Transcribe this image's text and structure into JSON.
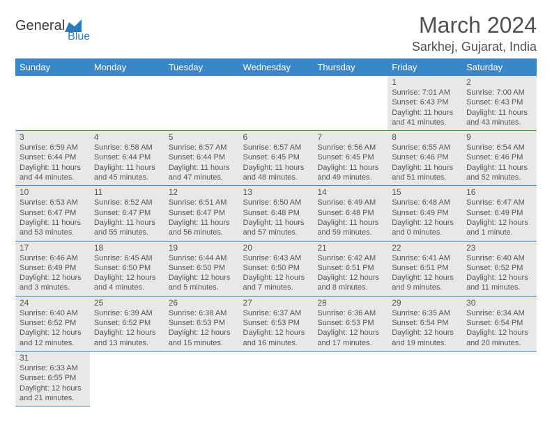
{
  "logo": {
    "text1": "General",
    "text2": "Blue"
  },
  "title": "March 2024",
  "location": "Sarkhej, Gujarat, India",
  "colors": {
    "header_bg": "#3a87c8",
    "header_text": "#ffffff",
    "cell_bg": "#e8e8e8",
    "border": "#3a87c8",
    "text": "#555555",
    "title_text": "#505050",
    "logo_gray": "#3a3a3a",
    "logo_blue": "#2b7bbf"
  },
  "typography": {
    "title_fontsize": 32,
    "location_fontsize": 18,
    "header_fontsize": 13,
    "daynum_fontsize": 12,
    "body_fontsize": 11
  },
  "day_headers": [
    "Sunday",
    "Monday",
    "Tuesday",
    "Wednesday",
    "Thursday",
    "Friday",
    "Saturday"
  ],
  "weeks": [
    [
      null,
      null,
      null,
      null,
      null,
      {
        "n": "1",
        "sr": "Sunrise: 7:01 AM",
        "ss": "Sunset: 6:43 PM",
        "d1": "Daylight: 11 hours",
        "d2": "and 41 minutes."
      },
      {
        "n": "2",
        "sr": "Sunrise: 7:00 AM",
        "ss": "Sunset: 6:43 PM",
        "d1": "Daylight: 11 hours",
        "d2": "and 43 minutes."
      }
    ],
    [
      {
        "n": "3",
        "sr": "Sunrise: 6:59 AM",
        "ss": "Sunset: 6:44 PM",
        "d1": "Daylight: 11 hours",
        "d2": "and 44 minutes."
      },
      {
        "n": "4",
        "sr": "Sunrise: 6:58 AM",
        "ss": "Sunset: 6:44 PM",
        "d1": "Daylight: 11 hours",
        "d2": "and 45 minutes."
      },
      {
        "n": "5",
        "sr": "Sunrise: 6:57 AM",
        "ss": "Sunset: 6:44 PM",
        "d1": "Daylight: 11 hours",
        "d2": "and 47 minutes."
      },
      {
        "n": "6",
        "sr": "Sunrise: 6:57 AM",
        "ss": "Sunset: 6:45 PM",
        "d1": "Daylight: 11 hours",
        "d2": "and 48 minutes."
      },
      {
        "n": "7",
        "sr": "Sunrise: 6:56 AM",
        "ss": "Sunset: 6:45 PM",
        "d1": "Daylight: 11 hours",
        "d2": "and 49 minutes."
      },
      {
        "n": "8",
        "sr": "Sunrise: 6:55 AM",
        "ss": "Sunset: 6:46 PM",
        "d1": "Daylight: 11 hours",
        "d2": "and 51 minutes."
      },
      {
        "n": "9",
        "sr": "Sunrise: 6:54 AM",
        "ss": "Sunset: 6:46 PM",
        "d1": "Daylight: 11 hours",
        "d2": "and 52 minutes."
      }
    ],
    [
      {
        "n": "10",
        "sr": "Sunrise: 6:53 AM",
        "ss": "Sunset: 6:47 PM",
        "d1": "Daylight: 11 hours",
        "d2": "and 53 minutes."
      },
      {
        "n": "11",
        "sr": "Sunrise: 6:52 AM",
        "ss": "Sunset: 6:47 PM",
        "d1": "Daylight: 11 hours",
        "d2": "and 55 minutes."
      },
      {
        "n": "12",
        "sr": "Sunrise: 6:51 AM",
        "ss": "Sunset: 6:47 PM",
        "d1": "Daylight: 11 hours",
        "d2": "and 56 minutes."
      },
      {
        "n": "13",
        "sr": "Sunrise: 6:50 AM",
        "ss": "Sunset: 6:48 PM",
        "d1": "Daylight: 11 hours",
        "d2": "and 57 minutes."
      },
      {
        "n": "14",
        "sr": "Sunrise: 6:49 AM",
        "ss": "Sunset: 6:48 PM",
        "d1": "Daylight: 11 hours",
        "d2": "and 59 minutes."
      },
      {
        "n": "15",
        "sr": "Sunrise: 6:48 AM",
        "ss": "Sunset: 6:49 PM",
        "d1": "Daylight: 12 hours",
        "d2": "and 0 minutes."
      },
      {
        "n": "16",
        "sr": "Sunrise: 6:47 AM",
        "ss": "Sunset: 6:49 PM",
        "d1": "Daylight: 12 hours",
        "d2": "and 1 minute."
      }
    ],
    [
      {
        "n": "17",
        "sr": "Sunrise: 6:46 AM",
        "ss": "Sunset: 6:49 PM",
        "d1": "Daylight: 12 hours",
        "d2": "and 3 minutes."
      },
      {
        "n": "18",
        "sr": "Sunrise: 6:45 AM",
        "ss": "Sunset: 6:50 PM",
        "d1": "Daylight: 12 hours",
        "d2": "and 4 minutes."
      },
      {
        "n": "19",
        "sr": "Sunrise: 6:44 AM",
        "ss": "Sunset: 6:50 PM",
        "d1": "Daylight: 12 hours",
        "d2": "and 5 minutes."
      },
      {
        "n": "20",
        "sr": "Sunrise: 6:43 AM",
        "ss": "Sunset: 6:50 PM",
        "d1": "Daylight: 12 hours",
        "d2": "and 7 minutes."
      },
      {
        "n": "21",
        "sr": "Sunrise: 6:42 AM",
        "ss": "Sunset: 6:51 PM",
        "d1": "Daylight: 12 hours",
        "d2": "and 8 minutes."
      },
      {
        "n": "22",
        "sr": "Sunrise: 6:41 AM",
        "ss": "Sunset: 6:51 PM",
        "d1": "Daylight: 12 hours",
        "d2": "and 9 minutes."
      },
      {
        "n": "23",
        "sr": "Sunrise: 6:40 AM",
        "ss": "Sunset: 6:52 PM",
        "d1": "Daylight: 12 hours",
        "d2": "and 11 minutes."
      }
    ],
    [
      {
        "n": "24",
        "sr": "Sunrise: 6:40 AM",
        "ss": "Sunset: 6:52 PM",
        "d1": "Daylight: 12 hours",
        "d2": "and 12 minutes."
      },
      {
        "n": "25",
        "sr": "Sunrise: 6:39 AM",
        "ss": "Sunset: 6:52 PM",
        "d1": "Daylight: 12 hours",
        "d2": "and 13 minutes."
      },
      {
        "n": "26",
        "sr": "Sunrise: 6:38 AM",
        "ss": "Sunset: 6:53 PM",
        "d1": "Daylight: 12 hours",
        "d2": "and 15 minutes."
      },
      {
        "n": "27",
        "sr": "Sunrise: 6:37 AM",
        "ss": "Sunset: 6:53 PM",
        "d1": "Daylight: 12 hours",
        "d2": "and 16 minutes."
      },
      {
        "n": "28",
        "sr": "Sunrise: 6:36 AM",
        "ss": "Sunset: 6:53 PM",
        "d1": "Daylight: 12 hours",
        "d2": "and 17 minutes."
      },
      {
        "n": "29",
        "sr": "Sunrise: 6:35 AM",
        "ss": "Sunset: 6:54 PM",
        "d1": "Daylight: 12 hours",
        "d2": "and 19 minutes."
      },
      {
        "n": "30",
        "sr": "Sunrise: 6:34 AM",
        "ss": "Sunset: 6:54 PM",
        "d1": "Daylight: 12 hours",
        "d2": "and 20 minutes."
      }
    ],
    [
      {
        "n": "31",
        "sr": "Sunrise: 6:33 AM",
        "ss": "Sunset: 6:55 PM",
        "d1": "Daylight: 12 hours",
        "d2": "and 21 minutes."
      },
      null,
      null,
      null,
      null,
      null,
      null
    ]
  ]
}
